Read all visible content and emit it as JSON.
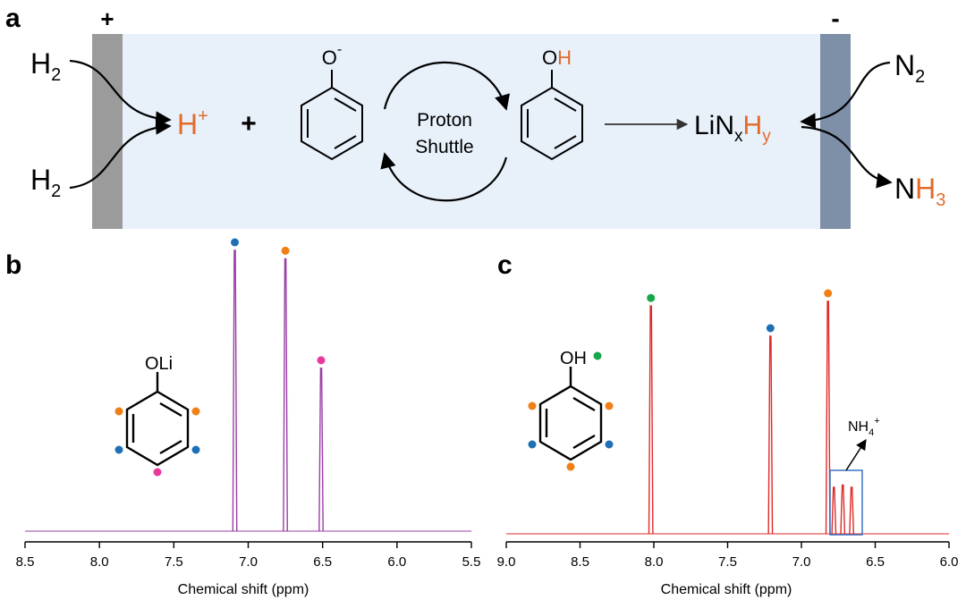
{
  "panel_a": {
    "label": "a",
    "anode_sign": "+",
    "cathode_sign": "-",
    "h2_top": {
      "main": "H",
      "sub": "2"
    },
    "h2_bottom": {
      "main": "H",
      "sub": "2"
    },
    "proton": {
      "main": "H",
      "sup": "+"
    },
    "plus": "+",
    "phenoxide_label": {
      "main": "O",
      "sup": "-"
    },
    "phenol_label": {
      "o": "O",
      "h": "H"
    },
    "shuttle_line1": "Proton",
    "shuttle_line2": "Shuttle",
    "linxhy": {
      "li": "LiN",
      "x": "x",
      "h": "H",
      "y": "y"
    },
    "n2": {
      "main": "N",
      "sub": "2"
    },
    "nh3": {
      "n": "N",
      "h": "H",
      "sub": "3"
    },
    "colors": {
      "electrolyte": "#e8f0fa",
      "anode": "#9b9b9b",
      "cathode": "#7e8fa8",
      "accent": "#e26b2b"
    }
  },
  "panel_b": {
    "label": "b",
    "molecule_label": "OLi",
    "dot_colors": {
      "blue": "#1f6fb5",
      "orange": "#f07f15",
      "pink": "#e8389a"
    }
  },
  "panel_c": {
    "label": "c",
    "molecule_label": "OH",
    "nh4_label": {
      "main": "NH",
      "sub": "4",
      "sup": "+"
    },
    "dot_colors": {
      "green": "#1aa64a",
      "blue": "#1f6fb5",
      "orange": "#f07f15"
    }
  },
  "chart_data": [
    {
      "type": "line",
      "xlabel": "Chemical shift (ppm)",
      "xlim": [
        8.5,
        5.5
      ],
      "x_ticks": [
        "8.5",
        "8.0",
        "7.5",
        "7.0",
        "6.5",
        "6.0",
        "5.5"
      ],
      "line_color": "#9b3fa8",
      "peaks": [
        {
          "ppm": 7.09,
          "height": 1.0,
          "marker": "blue"
        },
        {
          "ppm": 6.75,
          "height": 0.97,
          "marker": "orange"
        },
        {
          "ppm": 6.51,
          "height": 0.58,
          "marker": "pink"
        }
      ]
    },
    {
      "type": "line",
      "xlabel": "Chemical shift (ppm)",
      "xlim": [
        9.0,
        6.0
      ],
      "x_ticks": [
        "9.0",
        "8.5",
        "8.0",
        "7.5",
        "7.0",
        "6.5",
        "6.0"
      ],
      "line_color": "#e02a2a",
      "peaks": [
        {
          "ppm": 8.02,
          "height": 0.98,
          "marker": "green"
        },
        {
          "ppm": 7.21,
          "height": 0.85,
          "marker": "blue"
        },
        {
          "ppm": 6.82,
          "height": 1.0,
          "marker": "orange"
        },
        {
          "ppm": 6.78,
          "height": 0.2,
          "marker": ""
        },
        {
          "ppm": 6.72,
          "height": 0.21,
          "marker": ""
        },
        {
          "ppm": 6.66,
          "height": 0.2,
          "marker": ""
        }
      ]
    }
  ]
}
